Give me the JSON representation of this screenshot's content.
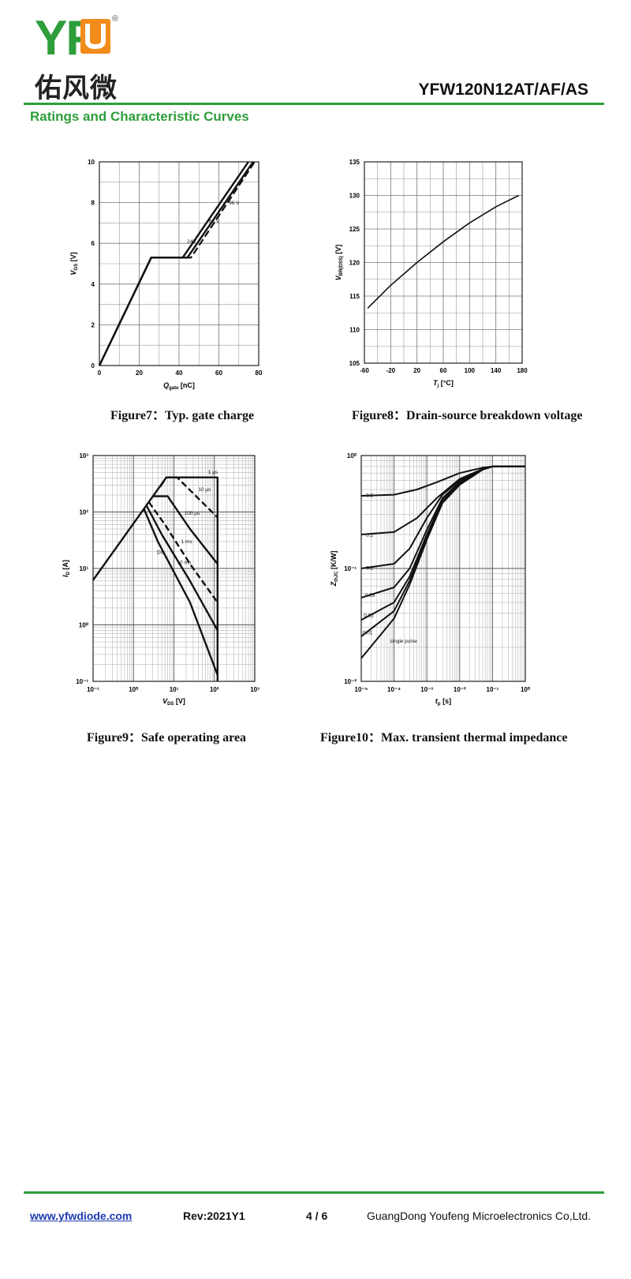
{
  "header": {
    "logo_letters": "YFU",
    "logo_registered": "®",
    "logo_chinese": "佑风微",
    "part_number": "YFW120N12AT/AF/AS",
    "section_title": "Ratings and Characteristic Curves",
    "brand_color": "#2e9e3b"
  },
  "footer": {
    "website": "www.yfwdiode.com",
    "revision": "Rev:2021Y1",
    "page": "4 / 6",
    "company": "GuangDong Youfeng Microelectronics Co,Ltd."
  },
  "chart_data": [
    {
      "type": "line",
      "caption": "Figure7：Typ. gate charge",
      "xlabel_main": "Q",
      "xlabel_sub": "gate",
      "xlabel_unit": " [nC]",
      "ylabel_main": "V",
      "ylabel_sub": "GS",
      "ylabel_unit": " [V]",
      "xlim": [
        0,
        80
      ],
      "ylim": [
        0,
        10
      ],
      "xticks": [
        0,
        20,
        40,
        60,
        80
      ],
      "yticks": [
        0,
        2,
        4,
        6,
        8,
        10
      ],
      "grid": true,
      "series": [
        {
          "name": "24V",
          "dash": false,
          "x": [
            0,
            26,
            43,
            76
          ],
          "y": [
            0,
            5.3,
            5.3,
            10
          ]
        },
        {
          "name": "60 V",
          "dash": true,
          "x": [
            0,
            26,
            46,
            78
          ],
          "y": [
            0,
            5.3,
            5.3,
            10
          ]
        },
        {
          "name": "96 V",
          "dash": false,
          "x": [
            0,
            26,
            43,
            76
          ],
          "y": [
            0,
            5.3,
            5.3,
            10
          ]
        }
      ],
      "annotations": [
        {
          "text": "96 V",
          "x": 65,
          "y": 7.9
        },
        {
          "text": "60 V",
          "x": 55,
          "y": 7.0
        },
        {
          "text": "24V",
          "x": 44,
          "y": 6.0
        }
      ]
    },
    {
      "type": "line",
      "caption": "Figure8：Drain-source breakdown voltage",
      "xlabel_main": "T",
      "xlabel_sub": "j",
      "xlabel_unit": " [°C]",
      "ylabel_main": "V",
      "ylabel_sub": "BR(DSS)",
      "ylabel_unit": " [V]",
      "xlim": [
        -60,
        180
      ],
      "ylim": [
        105,
        135
      ],
      "xticks": [
        -60,
        -20,
        20,
        60,
        100,
        140,
        180
      ],
      "yticks": [
        105,
        110,
        115,
        120,
        125,
        130,
        135
      ],
      "grid": true,
      "series": [
        {
          "name": "",
          "x": [
            -55,
            -20,
            20,
            60,
            100,
            140,
            175
          ],
          "y": [
            113.2,
            116.6,
            120.0,
            123.1,
            125.9,
            128.3,
            130.0
          ]
        }
      ]
    },
    {
      "type": "line",
      "caption": "Figure9：Safe operating area",
      "xlabel_main": "V",
      "xlabel_sub": "DS",
      "xlabel_unit": " [V]",
      "ylabel_main": "I",
      "ylabel_sub": "D",
      "ylabel_unit": " [A]",
      "xscale": "log",
      "yscale": "log",
      "xlim": [
        0.1,
        1000
      ],
      "ylim": [
        0.1,
        1000
      ],
      "xticks": [
        "10⁻¹",
        "10⁰",
        "10¹",
        "10²",
        "10³"
      ],
      "yticks": [
        "10⁻¹",
        "10⁰",
        "10¹",
        "10²",
        "10³"
      ],
      "grid": true,
      "series": [
        {
          "name": "1 µs",
          "dash": false,
          "x": [
            0.1,
            6.5,
            120,
            120
          ],
          "y": [
            6.2,
            410,
            410,
            0.1
          ]
        },
        {
          "name": "10 µs",
          "dash": true,
          "x": [
            4.6,
            6.5,
            12,
            120
          ],
          "y": [
            280,
            410,
            410,
            80
          ]
        },
        {
          "name": "100 µs",
          "dash": false,
          "x": [
            3.0,
            7,
            25,
            120
          ],
          "y": [
            190,
            190,
            50,
            12
          ]
        },
        {
          "name": "1 ms",
          "dash": true,
          "x": [
            2.4,
            6,
            25,
            120
          ],
          "y": [
            150,
            60,
            12,
            2.5
          ]
        },
        {
          "name": "10 ms",
          "dash": false,
          "x": [
            2.1,
            5,
            25,
            120
          ],
          "y": [
            130,
            40,
            6,
            0.8
          ]
        },
        {
          "name": "DC",
          "dash": false,
          "x": [
            1.8,
            4,
            25,
            120
          ],
          "y": [
            115,
            30,
            2.5,
            0.13
          ]
        }
      ],
      "annotations": [
        {
          "text": "1 µs",
          "x": 70,
          "y": 480
        },
        {
          "text": "10 µs",
          "x": 40,
          "y": 235
        },
        {
          "text": "100 µs",
          "x": 18,
          "y": 90
        },
        {
          "text": "1 ms",
          "x": 15,
          "y": 28
        },
        {
          "text": "DC",
          "x": 3.8,
          "y": 18
        },
        {
          "text": "10 ms",
          "x": 12,
          "y": 12
        }
      ]
    },
    {
      "type": "line",
      "caption": "Figure10：Max. transient thermal impedance",
      "xlabel_main": "t",
      "xlabel_sub": "p",
      "xlabel_unit": " [s]",
      "ylabel_main": "Z",
      "ylabel_sub": "thJC",
      "ylabel_unit": " [K/W]",
      "xscale": "log",
      "yscale": "log",
      "xlim": [
        1e-05,
        1
      ],
      "ylim": [
        0.01,
        1
      ],
      "xticks": [
        "10⁻⁵",
        "10⁻⁴",
        "10⁻³",
        "10⁻²",
        "10⁻¹",
        "10⁰"
      ],
      "yticks": [
        "10⁻²",
        "10⁻¹",
        "10⁰"
      ],
      "grid": true,
      "series": [
        {
          "name": "0.5",
          "x": [
            1e-05,
            0.0001,
            0.0005,
            0.002,
            0.01,
            0.05,
            0.1,
            1
          ],
          "y": [
            0.44,
            0.45,
            0.5,
            0.58,
            0.7,
            0.78,
            0.8,
            0.8
          ]
        },
        {
          "name": "0.2",
          "x": [
            1e-05,
            0.0001,
            0.0005,
            0.002,
            0.01,
            0.05,
            0.1,
            1
          ],
          "y": [
            0.2,
            0.21,
            0.28,
            0.42,
            0.62,
            0.76,
            0.8,
            0.8
          ]
        },
        {
          "name": "0.1",
          "x": [
            1e-05,
            0.0001,
            0.0003,
            0.001,
            0.003,
            0.01,
            0.05,
            0.1,
            1
          ],
          "y": [
            0.1,
            0.11,
            0.15,
            0.28,
            0.45,
            0.6,
            0.76,
            0.8,
            0.8
          ]
        },
        {
          "name": "0.05",
          "x": [
            1e-05,
            0.0001,
            0.0003,
            0.001,
            0.003,
            0.01,
            0.05,
            0.1,
            1
          ],
          "y": [
            0.055,
            0.068,
            0.1,
            0.22,
            0.42,
            0.58,
            0.76,
            0.8,
            0.8
          ]
        },
        {
          "name": "0.02",
          "x": [
            1e-05,
            0.0001,
            0.0003,
            0.001,
            0.003,
            0.01,
            0.05,
            0.1,
            1
          ],
          "y": [
            0.035,
            0.05,
            0.085,
            0.2,
            0.4,
            0.57,
            0.76,
            0.8,
            0.8
          ]
        },
        {
          "name": "0.01",
          "x": [
            1e-05,
            0.0001,
            0.0003,
            0.001,
            0.003,
            0.01,
            0.05,
            0.1,
            1
          ],
          "y": [
            0.025,
            0.042,
            0.078,
            0.19,
            0.39,
            0.56,
            0.76,
            0.8,
            0.8
          ]
        },
        {
          "name": "single pulse",
          "x": [
            1e-05,
            0.0001,
            0.0003,
            0.001,
            0.003,
            0.01,
            0.05,
            0.1,
            1
          ],
          "y": [
            0.016,
            0.036,
            0.072,
            0.18,
            0.38,
            0.55,
            0.75,
            0.8,
            0.8
          ]
        }
      ],
      "annotations": [
        {
          "text": "0.5",
          "x": 1.4e-05,
          "y": 0.43
        },
        {
          "text": "0.2",
          "x": 1.4e-05,
          "y": 0.19
        },
        {
          "text": "0.1",
          "x": 1.4e-05,
          "y": 0.098
        },
        {
          "text": "0.05",
          "x": 1.3e-05,
          "y": 0.056
        },
        {
          "text": "0.02",
          "x": 1.2e-05,
          "y": 0.037
        },
        {
          "text": "0.01",
          "x": 1.1e-05,
          "y": 0.026
        },
        {
          "text": "single pulse",
          "x": 7.5e-05,
          "y": 0.022
        }
      ]
    }
  ]
}
